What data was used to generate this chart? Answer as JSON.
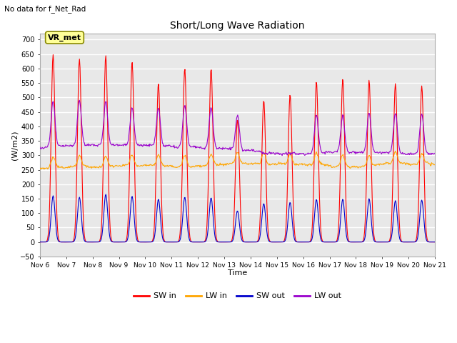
{
  "title": "Short/Long Wave Radiation",
  "top_left_text": "No data for f_Net_Rad",
  "annotation_box": "VR_met",
  "ylabel": "(W/m2)",
  "xlabel": "Time",
  "ylim": [
    -50,
    720
  ],
  "yticks": [
    -50,
    0,
    50,
    100,
    150,
    200,
    250,
    300,
    350,
    400,
    450,
    500,
    550,
    600,
    650,
    700
  ],
  "xtick_labels": [
    "Nov 6",
    "Nov 7",
    "Nov 8",
    "Nov 9",
    "Nov 10",
    "Nov 11",
    "Nov 12",
    "Nov 13",
    "Nov 14",
    "Nov 15",
    "Nov 16",
    "Nov 17",
    "Nov 18",
    "Nov 19",
    "Nov 20",
    "Nov 21"
  ],
  "colors": {
    "SW_in": "#ff0000",
    "LW_in": "#ffa500",
    "SW_out": "#0000cc",
    "LW_out": "#9900cc"
  },
  "legend_labels": [
    "SW in",
    "LW in",
    "SW out",
    "LW out"
  ],
  "figure_bg_color": "#f0f0f0",
  "plot_bg_color": "#e8e8e8",
  "grid_color": "#ffffff",
  "n_days": 15,
  "SW_in_peaks": [
    648,
    633,
    645,
    622,
    548,
    600,
    600,
    425,
    490,
    510,
    554,
    563,
    560,
    548,
    540
  ],
  "LW_in_night": 265,
  "LW_in_day_delta": 38,
  "SW_out_peaks": [
    160,
    155,
    165,
    158,
    148,
    155,
    153,
    108,
    133,
    137,
    147,
    148,
    150,
    143,
    145
  ],
  "LW_out_night": 320,
  "LW_out_day_peak": [
    480,
    475,
    472,
    450,
    450,
    465,
    460,
    440,
    320,
    320,
    455,
    450,
    455,
    460,
    458
  ]
}
